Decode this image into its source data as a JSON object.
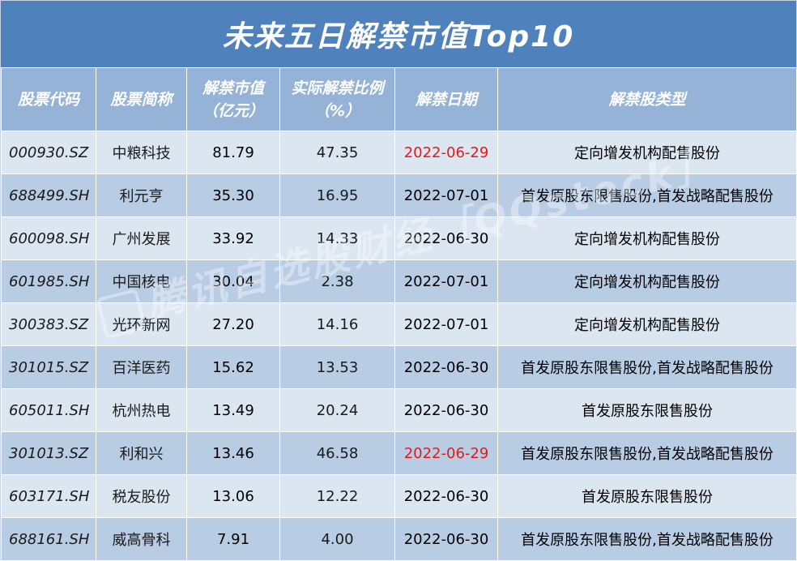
{
  "title": "未来五日解禁市值Top10",
  "headers": {
    "code": "股票代码",
    "name": "股票简称",
    "value_line1": "解禁市值",
    "value_line2": "（亿元）",
    "ratio_line1": "实际解禁比例",
    "ratio_line2": "（%）",
    "date": "解禁日期",
    "type": "解禁股类型"
  },
  "rows": [
    {
      "code": "000930.SZ",
      "name": "中粮科技",
      "value": "81.79",
      "ratio": "47.35",
      "date": "2022-06-29",
      "date_color": "red",
      "type": "定向增发机构配售股份"
    },
    {
      "code": "688499.SH",
      "name": "利元亨",
      "value": "35.30",
      "ratio": "16.95",
      "date": "2022-07-01",
      "date_color": "black",
      "type": "首发原股东限售股份,首发战略配售股份"
    },
    {
      "code": "600098.SH",
      "name": "广州发展",
      "value": "33.92",
      "ratio": "14.33",
      "date": "2022-06-30",
      "date_color": "black",
      "type": "定向增发机构配售股份"
    },
    {
      "code": "601985.SH",
      "name": "中国核电",
      "value": "30.04",
      "ratio": "2.38",
      "date": "2022-07-01",
      "date_color": "black",
      "type": "定向增发机构配售股份"
    },
    {
      "code": "300383.SZ",
      "name": "光环新网",
      "value": "27.20",
      "ratio": "14.16",
      "date": "2022-07-01",
      "date_color": "black",
      "type": "定向增发机构配售股份"
    },
    {
      "code": "301015.SZ",
      "name": "百洋医药",
      "value": "15.62",
      "ratio": "13.53",
      "date": "2022-06-30",
      "date_color": "black",
      "type": "首发原股东限售股份,首发战略配售股份"
    },
    {
      "code": "605011.SH",
      "name": "杭州热电",
      "value": "13.49",
      "ratio": "20.24",
      "date": "2022-06-30",
      "date_color": "black",
      "type": "首发原股东限售股份"
    },
    {
      "code": "301013.SZ",
      "name": "利和兴",
      "value": "13.46",
      "ratio": "46.58",
      "date": "2022-06-29",
      "date_color": "red",
      "type": "首发原股东限售股份,首发战略配售股份"
    },
    {
      "code": "603171.SH",
      "name": "税友股份",
      "value": "13.06",
      "ratio": "12.22",
      "date": "2022-06-30",
      "date_color": "black",
      "type": "首发原股东限售股份"
    },
    {
      "code": "688161.SH",
      "name": "威高骨科",
      "value": "7.91",
      "ratio": "4.00",
      "date": "2022-06-30",
      "date_color": "black",
      "type": "首发原股东限售股份,首发战略配售股份"
    }
  ],
  "watermark": "腾讯自选股财经［QQstock］",
  "colors": {
    "title_bg": "#4f81bd",
    "header_bg": "#95b3d7",
    "row_light": "#dce6f1",
    "row_dark": "#b8cce4",
    "highlight_date": "#e31a1a"
  }
}
